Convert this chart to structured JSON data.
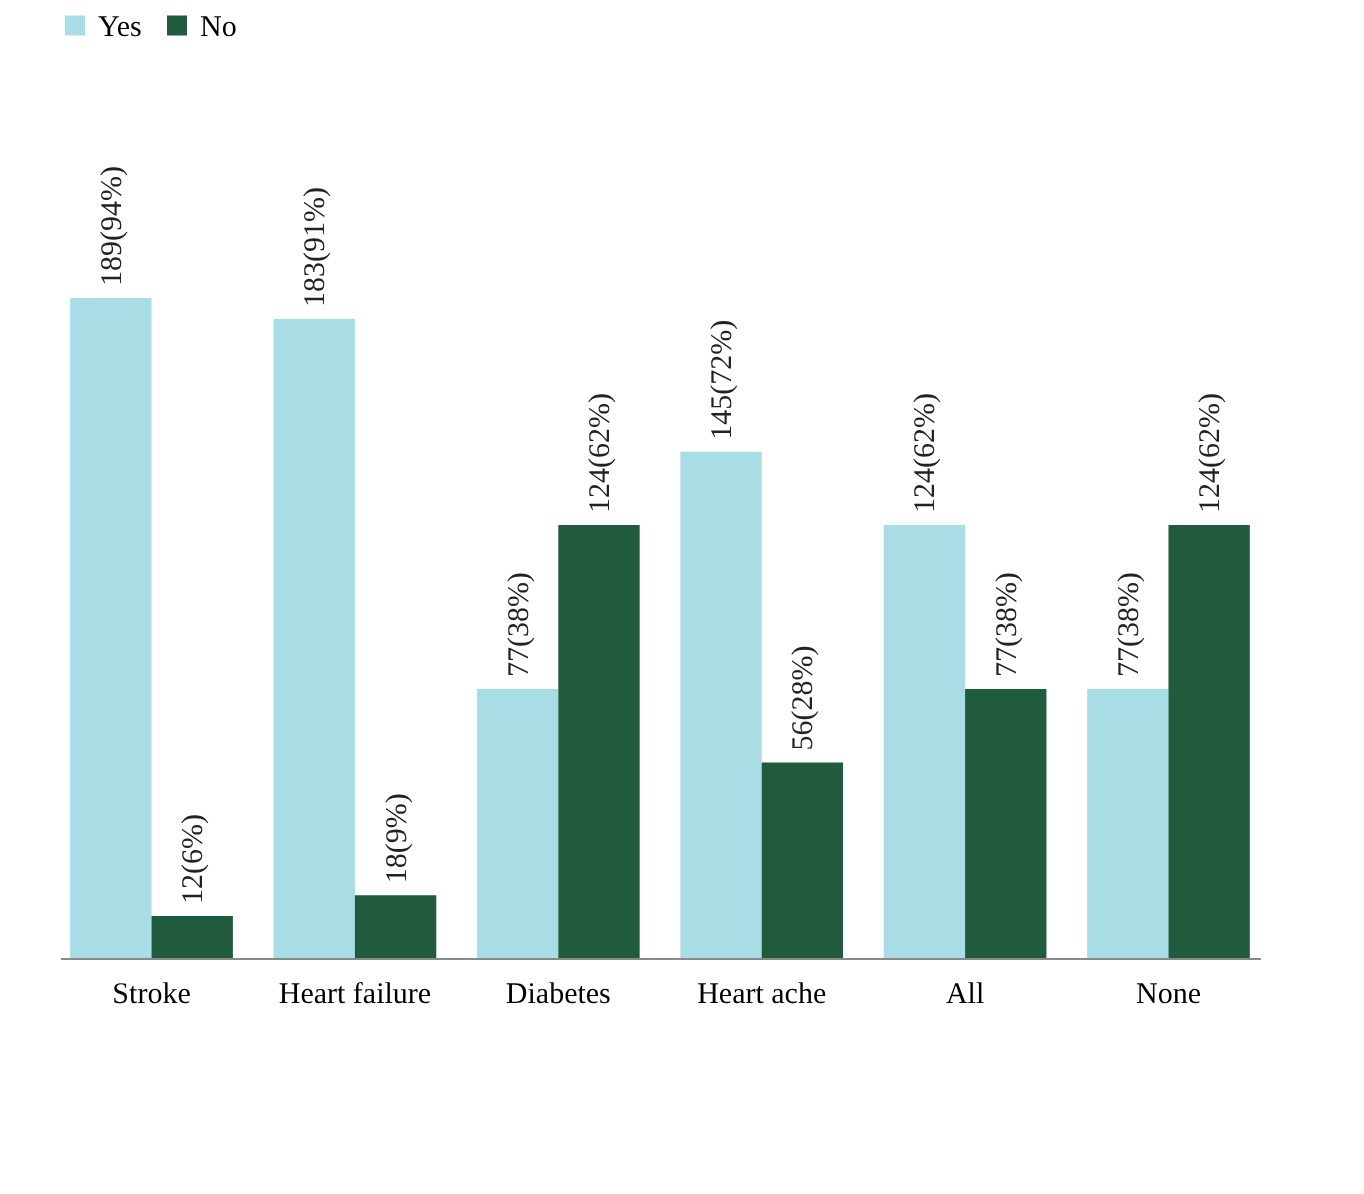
{
  "chart_data": {
    "type": "bar",
    "categories": [
      "Stroke",
      "Heart failure",
      "Diabetes",
      "Heart ache",
      "All",
      "None"
    ],
    "series": [
      {
        "name": "Yes",
        "color": "#a9dde6",
        "values": [
          189,
          183,
          77,
          145,
          124,
          77
        ],
        "value_labels": [
          "189(94%)",
          "183(91%)",
          "77(38%)",
          "145(72%)",
          "124(62%)",
          "77(38%)"
        ]
      },
      {
        "name": "No",
        "color": "#1f5b3c",
        "values": [
          12,
          18,
          124,
          56,
          77,
          124
        ],
        "value_labels": [
          "12(6%)",
          "18(9%)",
          "124(62%)",
          "56(28%)",
          "77(38%)",
          "124(62%)"
        ]
      }
    ],
    "legend": "top",
    "grid": false
  }
}
